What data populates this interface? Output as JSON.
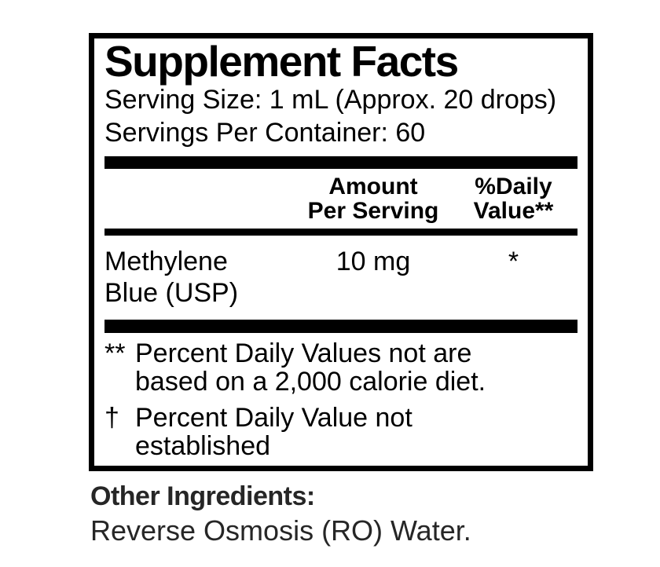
{
  "label": {
    "title": "Supplement Facts",
    "serving_size": "Serving Size: 1 mL (Approx. 20 drops)",
    "servings_per_container": "Servings Per Container: 60",
    "columns": {
      "amount_lines": [
        "Amount",
        "Per Serving"
      ],
      "daily_value_lines": [
        "%Daily",
        "Value**"
      ]
    },
    "rows": [
      {
        "name": "Methylene Blue (USP)",
        "amount": "10 mg",
        "daily_value": "*"
      }
    ],
    "footnotes": [
      {
        "marker": "**",
        "text": "Percent Daily Values not are based on a 2,000 calorie diet."
      },
      {
        "marker": "†",
        "text": "Percent Daily Value not established"
      }
    ]
  },
  "other_ingredients": {
    "heading": "Other Ingredients:",
    "text": "Reverse Osmosis (RO) Water."
  },
  "colors": {
    "panel_border": "#000000",
    "panel_text": "#000000",
    "footer_text": "#262626",
    "background": "#ffffff"
  }
}
